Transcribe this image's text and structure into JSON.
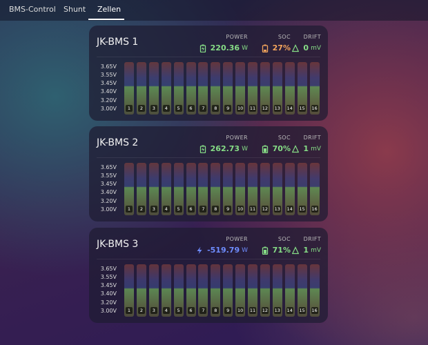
{
  "tabs": [
    {
      "label": "BMS-Control",
      "active": false
    },
    {
      "label": "Shunt",
      "active": false
    },
    {
      "label": "Zellen",
      "active": true
    }
  ],
  "scale": [
    "3.65V",
    "3.55V",
    "3.45V",
    "3.40V",
    "3.20V",
    "3.00V"
  ],
  "cells": [
    "1",
    "2",
    "3",
    "4",
    "5",
    "6",
    "7",
    "8",
    "9",
    "10",
    "11",
    "12",
    "13",
    "14",
    "15",
    "16"
  ],
  "cards": [
    {
      "title": "JK-BMS 1",
      "stats": [
        {
          "label": "POWER",
          "value": "220.36",
          "unit": "W",
          "icon": "battery-charging",
          "color": "#86dd86"
        },
        {
          "label": "SOC",
          "value": "27%",
          "icon": "battery-low",
          "color": "#f4a55c"
        },
        {
          "label": "DRIFT",
          "value": "0",
          "unit": "mV",
          "icon": "delta",
          "color": "#86dd86"
        }
      ]
    },
    {
      "title": "JK-BMS 2",
      "stats": [
        {
          "label": "POWER",
          "value": "262.73",
          "unit": "W",
          "icon": "battery-charging",
          "color": "#86dd86"
        },
        {
          "label": "SOC",
          "value": "70%",
          "icon": "battery-mid",
          "color": "#86dd86"
        },
        {
          "label": "DRIFT",
          "value": "1",
          "unit": "mV",
          "icon": "delta",
          "color": "#86dd86"
        }
      ]
    },
    {
      "title": "JK-BMS 3",
      "stats": [
        {
          "label": "POWER",
          "value": "-519.79",
          "unit": "W",
          "icon": "bolt",
          "color": "#6f8dff"
        },
        {
          "label": "SOC",
          "value": "71%",
          "icon": "battery-mid",
          "color": "#86dd86"
        },
        {
          "label": "DRIFT",
          "value": "1",
          "unit": "mV",
          "icon": "delta",
          "color": "#86dd86"
        }
      ]
    }
  ]
}
